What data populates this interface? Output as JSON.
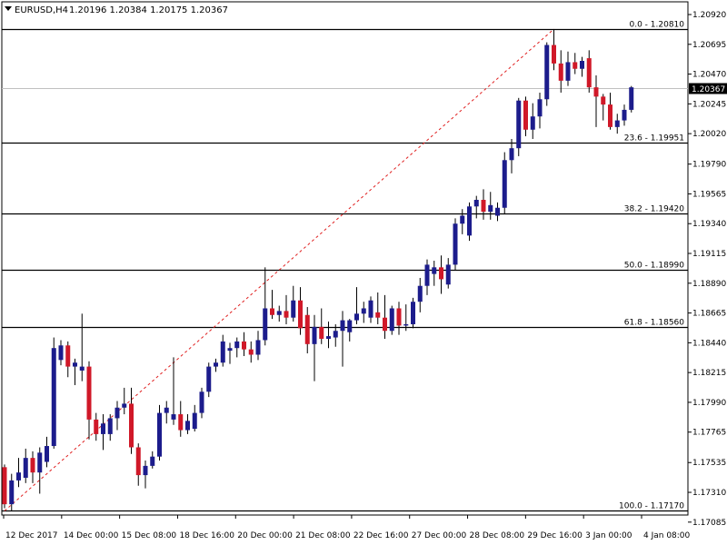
{
  "header": {
    "symbol_label": "EURUSD,H4",
    "ohlc": "1.20196 1.20384 1.20175 1.20367"
  },
  "colors": {
    "background": "#ffffff",
    "grid_line": "#000000",
    "bull_body": "#1c1c8c",
    "bear_body": "#d01828",
    "wick": "#000000",
    "trend_line": "#e02020",
    "price_line": "#c0c0c0",
    "current_price_bg": "#000000",
    "current_price_text": "#ffffff"
  },
  "chart_data": {
    "type": "candlestick",
    "ylim": [
      1.1707,
      1.2092
    ],
    "y_ticks": [
      "1.20920",
      "1.20695",
      "1.20470",
      "1.20245",
      "1.20020",
      "1.19790",
      "1.19565",
      "1.19340",
      "1.19115",
      "1.18890",
      "1.18665",
      "1.18440",
      "1.18215",
      "1.17990",
      "1.17765",
      "1.17535",
      "1.17310",
      "1.17085"
    ],
    "x_tick_labels": [
      "12 Dec 2017",
      "14 Dec 00:00",
      "15 Dec 08:00",
      "18 Dec 16:00",
      "20 Dec 00:00",
      "21 Dec 08:00",
      "22 Dec 16:00",
      "27 Dec 00:00",
      "28 Dec 08:00",
      "29 Dec 16:00",
      "3 Jan 00:00",
      "4 Jan 08:00"
    ],
    "current_price": "1.20367",
    "fib_levels": [
      {
        "label": "0.0 - 1.20810",
        "price": 1.2081
      },
      {
        "label": "23.6 - 1.19951",
        "price": 1.19951
      },
      {
        "label": "38.2 - 1.19420",
        "price": 1.1942
      },
      {
        "label": "50.0 - 1.18990",
        "price": 1.1899
      },
      {
        "label": "61.8 - 1.18560",
        "price": 1.1856
      },
      {
        "label": "100.0 - 1.17170",
        "price": 1.1717
      }
    ],
    "trend_line": {
      "from_price": 1.1717,
      "to_price": 1.2081
    },
    "candles": [
      {
        "o": 1.175,
        "h": 1.1752,
        "l": 1.1719,
        "c": 1.1722
      },
      {
        "o": 1.1722,
        "h": 1.1745,
        "l": 1.1717,
        "c": 1.174
      },
      {
        "o": 1.174,
        "h": 1.1757,
        "l": 1.1735,
        "c": 1.1746
      },
      {
        "o": 1.1742,
        "h": 1.1764,
        "l": 1.1738,
        "c": 1.1757
      },
      {
        "o": 1.1757,
        "h": 1.1762,
        "l": 1.1738,
        "c": 1.1746
      },
      {
        "o": 1.1746,
        "h": 1.1765,
        "l": 1.173,
        "c": 1.1761
      },
      {
        "o": 1.1754,
        "h": 1.1773,
        "l": 1.175,
        "c": 1.1766
      },
      {
        "o": 1.1766,
        "h": 1.1848,
        "l": 1.1764,
        "c": 1.184
      },
      {
        "o": 1.1831,
        "h": 1.1846,
        "l": 1.1827,
        "c": 1.1842
      },
      {
        "o": 1.1842,
        "h": 1.1845,
        "l": 1.1818,
        "c": 1.1826
      },
      {
        "o": 1.1826,
        "h": 1.1832,
        "l": 1.1812,
        "c": 1.1829
      },
      {
        "o": 1.1823,
        "h": 1.1866,
        "l": 1.1815,
        "c": 1.1826
      },
      {
        "o": 1.1826,
        "h": 1.183,
        "l": 1.1771,
        "c": 1.1786
      },
      {
        "o": 1.1786,
        "h": 1.1791,
        "l": 1.177,
        "c": 1.1775
      },
      {
        "o": 1.1775,
        "h": 1.179,
        "l": 1.1763,
        "c": 1.1783
      },
      {
        "o": 1.1775,
        "h": 1.179,
        "l": 1.177,
        "c": 1.1787
      },
      {
        "o": 1.1787,
        "h": 1.18,
        "l": 1.1778,
        "c": 1.1795
      },
      {
        "o": 1.1795,
        "h": 1.181,
        "l": 1.179,
        "c": 1.1798
      },
      {
        "o": 1.1798,
        "h": 1.181,
        "l": 1.176,
        "c": 1.1765
      },
      {
        "o": 1.1765,
        "h": 1.1768,
        "l": 1.1736,
        "c": 1.1744
      },
      {
        "o": 1.1744,
        "h": 1.1755,
        "l": 1.1734,
        "c": 1.1751
      },
      {
        "o": 1.1751,
        "h": 1.1762,
        "l": 1.1749,
        "c": 1.1758
      },
      {
        "o": 1.1758,
        "h": 1.1797,
        "l": 1.1755,
        "c": 1.1791
      },
      {
        "o": 1.1791,
        "h": 1.18,
        "l": 1.1783,
        "c": 1.1795
      },
      {
        "o": 1.1786,
        "h": 1.1833,
        "l": 1.1782,
        "c": 1.179
      },
      {
        "o": 1.179,
        "h": 1.18,
        "l": 1.1773,
        "c": 1.1778
      },
      {
        "o": 1.1778,
        "h": 1.179,
        "l": 1.1775,
        "c": 1.1785
      },
      {
        "o": 1.1779,
        "h": 1.1797,
        "l": 1.1777,
        "c": 1.1791
      },
      {
        "o": 1.1791,
        "h": 1.181,
        "l": 1.1787,
        "c": 1.1807
      },
      {
        "o": 1.1807,
        "h": 1.1829,
        "l": 1.1803,
        "c": 1.1826
      },
      {
        "o": 1.1826,
        "h": 1.1832,
        "l": 1.1822,
        "c": 1.1829
      },
      {
        "o": 1.1829,
        "h": 1.185,
        "l": 1.1826,
        "c": 1.1845
      },
      {
        "o": 1.1838,
        "h": 1.1844,
        "l": 1.1828,
        "c": 1.184
      },
      {
        "o": 1.184,
        "h": 1.1848,
        "l": 1.1833,
        "c": 1.1845
      },
      {
        "o": 1.1845,
        "h": 1.1852,
        "l": 1.1834,
        "c": 1.1839
      },
      {
        "o": 1.1839,
        "h": 1.1845,
        "l": 1.1829,
        "c": 1.1835
      },
      {
        "o": 1.1835,
        "h": 1.1853,
        "l": 1.1831,
        "c": 1.1846
      },
      {
        "o": 1.1846,
        "h": 1.1901,
        "l": 1.1842,
        "c": 1.187
      },
      {
        "o": 1.187,
        "h": 1.1884,
        "l": 1.1862,
        "c": 1.1865
      },
      {
        "o": 1.1865,
        "h": 1.1872,
        "l": 1.186,
        "c": 1.1868
      },
      {
        "o": 1.1868,
        "h": 1.188,
        "l": 1.1858,
        "c": 1.1863
      },
      {
        "o": 1.1863,
        "h": 1.1887,
        "l": 1.186,
        "c": 1.1876
      },
      {
        "o": 1.1876,
        "h": 1.1886,
        "l": 1.185,
        "c": 1.1855
      },
      {
        "o": 1.1865,
        "h": 1.1871,
        "l": 1.1836,
        "c": 1.1843
      },
      {
        "o": 1.1843,
        "h": 1.1865,
        "l": 1.1815,
        "c": 1.1856
      },
      {
        "o": 1.1856,
        "h": 1.187,
        "l": 1.1843,
        "c": 1.1847
      },
      {
        "o": 1.1847,
        "h": 1.186,
        "l": 1.184,
        "c": 1.1849
      },
      {
        "o": 1.1848,
        "h": 1.1858,
        "l": 1.1841,
        "c": 1.1853
      },
      {
        "o": 1.1853,
        "h": 1.1868,
        "l": 1.1826,
        "c": 1.1861
      },
      {
        "o": 1.1852,
        "h": 1.1862,
        "l": 1.1845,
        "c": 1.1861
      },
      {
        "o": 1.1861,
        "h": 1.1886,
        "l": 1.1858,
        "c": 1.1866
      },
      {
        "o": 1.1866,
        "h": 1.1875,
        "l": 1.1859,
        "c": 1.187
      },
      {
        "o": 1.1863,
        "h": 1.1879,
        "l": 1.1859,
        "c": 1.1876
      },
      {
        "o": 1.1867,
        "h": 1.1882,
        "l": 1.1858,
        "c": 1.1863
      },
      {
        "o": 1.1863,
        "h": 1.188,
        "l": 1.1847,
        "c": 1.1853
      },
      {
        "o": 1.1853,
        "h": 1.1872,
        "l": 1.185,
        "c": 1.187
      },
      {
        "o": 1.187,
        "h": 1.1875,
        "l": 1.185,
        "c": 1.1857
      },
      {
        "o": 1.1857,
        "h": 1.1873,
        "l": 1.1853,
        "c": 1.1858
      },
      {
        "o": 1.1858,
        "h": 1.1878,
        "l": 1.1855,
        "c": 1.1875
      },
      {
        "o": 1.1875,
        "h": 1.1893,
        "l": 1.1867,
        "c": 1.1887
      },
      {
        "o": 1.1887,
        "h": 1.1907,
        "l": 1.188,
        "c": 1.1903
      },
      {
        "o": 1.1896,
        "h": 1.1906,
        "l": 1.1887,
        "c": 1.1901
      },
      {
        "o": 1.1901,
        "h": 1.191,
        "l": 1.1881,
        "c": 1.1892
      },
      {
        "o": 1.1888,
        "h": 1.1908,
        "l": 1.1885,
        "c": 1.1903
      },
      {
        "o": 1.1903,
        "h": 1.1938,
        "l": 1.1899,
        "c": 1.1934
      },
      {
        "o": 1.1934,
        "h": 1.1945,
        "l": 1.1926,
        "c": 1.194
      },
      {
        "o": 1.1925,
        "h": 1.195,
        "l": 1.1921,
        "c": 1.1947
      },
      {
        "o": 1.1947,
        "h": 1.1955,
        "l": 1.1938,
        "c": 1.1952
      },
      {
        "o": 1.1952,
        "h": 1.196,
        "l": 1.1937,
        "c": 1.1943
      },
      {
        "o": 1.1943,
        "h": 1.1958,
        "l": 1.1937,
        "c": 1.1948
      },
      {
        "o": 1.194,
        "h": 1.195,
        "l": 1.1936,
        "c": 1.1946
      },
      {
        "o": 1.1946,
        "h": 1.1988,
        "l": 1.1941,
        "c": 1.1982
      },
      {
        "o": 1.1982,
        "h": 1.1998,
        "l": 1.1972,
        "c": 1.1991
      },
      {
        "o": 1.1991,
        "h": 1.2029,
        "l": 1.1985,
        "c": 1.2027
      },
      {
        "o": 1.2027,
        "h": 1.203,
        "l": 1.2,
        "c": 1.2005
      },
      {
        "o": 1.2005,
        "h": 1.2025,
        "l": 1.1998,
        "c": 1.2015
      },
      {
        "o": 1.2015,
        "h": 1.2033,
        "l": 1.2006,
        "c": 1.2028
      },
      {
        "o": 1.2028,
        "h": 1.2071,
        "l": 1.2023,
        "c": 1.2069
      },
      {
        "o": 1.2069,
        "h": 1.2081,
        "l": 1.205,
        "c": 1.2055
      },
      {
        "o": 1.2055,
        "h": 1.2065,
        "l": 1.2033,
        "c": 1.2042
      },
      {
        "o": 1.2042,
        "h": 1.2064,
        "l": 1.2038,
        "c": 1.2056
      },
      {
        "o": 1.2056,
        "h": 1.2063,
        "l": 1.2047,
        "c": 1.2051
      },
      {
        "o": 1.2051,
        "h": 1.206,
        "l": 1.2045,
        "c": 1.2057
      },
      {
        "o": 1.2059,
        "h": 1.2065,
        "l": 1.2033,
        "c": 1.2037
      },
      {
        "o": 1.2037,
        "h": 1.2046,
        "l": 1.2007,
        "c": 1.203
      },
      {
        "o": 1.203,
        "h": 1.2032,
        "l": 1.2012,
        "c": 1.2024
      },
      {
        "o": 1.2024,
        "h": 1.2033,
        "l": 1.2005,
        "c": 1.2007
      },
      {
        "o": 1.2007,
        "h": 1.2017,
        "l": 1.2002,
        "c": 1.2012
      },
      {
        "o": 1.2012,
        "h": 1.2024,
        "l": 1.2008,
        "c": 1.202
      },
      {
        "o": 1.202,
        "h": 1.2038,
        "l": 1.2018,
        "c": 1.2037
      }
    ]
  }
}
